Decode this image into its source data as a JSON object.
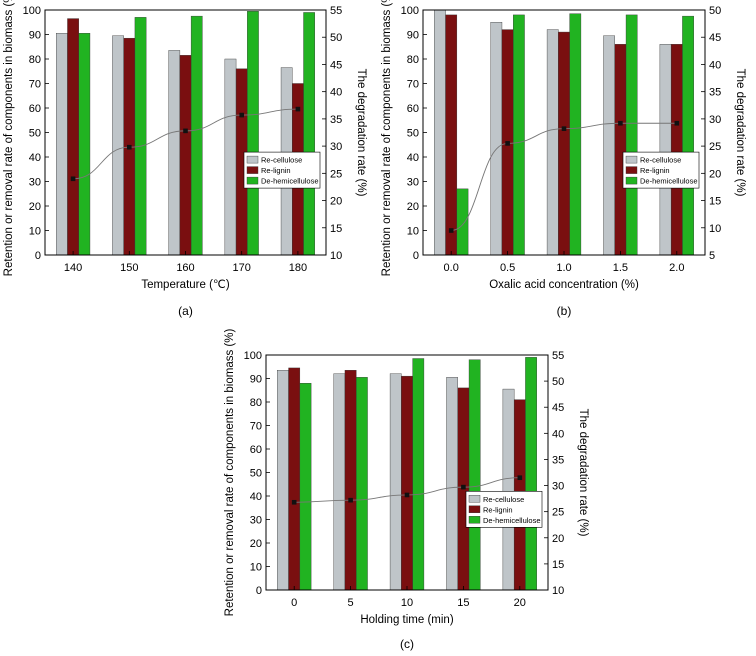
{
  "colors": {
    "Re-cellulose": "#bfc5c9",
    "Re-lignin": "#7a0f10",
    "De-hemicellulose": "#21b321",
    "line": "#777777",
    "marker": "#111111"
  },
  "chart_data": [
    {
      "type": "bar",
      "panel_label": "(a)",
      "categories": [
        "140",
        "150",
        "160",
        "170",
        "180"
      ],
      "xlabel": "Temperature (℃)",
      "ylabel": "Retention or removal rate of components in biomass (%)",
      "y2label": "The degradation rate (%)",
      "ylim": [
        0,
        100
      ],
      "yticks": [
        "0",
        "10",
        "20",
        "30",
        "40",
        "50",
        "60",
        "70",
        "80",
        "90",
        "100"
      ],
      "y2lim": [
        10,
        55
      ],
      "y2ticks": [
        "10",
        "15",
        "20",
        "25",
        "30",
        "35",
        "40",
        "45",
        "50",
        "55"
      ],
      "legend_position": "middle-right",
      "series": [
        {
          "name": "Re-cellulose",
          "values": [
            90.5,
            89.5,
            83.5,
            80,
            76.5
          ]
        },
        {
          "name": "Re-lignin",
          "values": [
            96.5,
            88.5,
            81.5,
            76,
            70
          ]
        },
        {
          "name": "De-hemicellulose",
          "values": [
            90.5,
            97,
            97.5,
            99.5,
            99
          ]
        }
      ],
      "line": {
        "name": "The degradation rate",
        "values": [
          24,
          29.8,
          32.8,
          35.7,
          36.8
        ]
      }
    },
    {
      "type": "bar",
      "panel_label": "(b)",
      "categories": [
        "0.0",
        "0.5",
        "1.0",
        "1.5",
        "2.0"
      ],
      "xlabel": "Oxalic acid concentration (%)",
      "ylabel": "Retention or removal rate of components in biomass (%)",
      "y2label": "The degradation rate (%)",
      "ylim": [
        0,
        100
      ],
      "yticks": [
        "0",
        "10",
        "20",
        "30",
        "40",
        "50",
        "60",
        "70",
        "80",
        "90",
        "100"
      ],
      "y2lim": [
        5,
        50
      ],
      "y2ticks": [
        "5",
        "10",
        "15",
        "20",
        "25",
        "30",
        "35",
        "40",
        "45",
        "50"
      ],
      "legend_position": "middle-right",
      "series": [
        {
          "name": "Re-cellulose",
          "values": [
            100,
            95,
            92,
            89.5,
            86
          ]
        },
        {
          "name": "Re-lignin",
          "values": [
            98,
            92,
            91,
            86,
            86
          ]
        },
        {
          "name": "De-hemicellulose",
          "values": [
            27,
            98,
            98.5,
            98,
            97.5
          ]
        }
      ],
      "line": {
        "name": "The degradation rate",
        "values": [
          9.5,
          25.5,
          28.2,
          29.2,
          29.2
        ]
      }
    },
    {
      "type": "bar",
      "panel_label": "(c)",
      "categories": [
        "0",
        "5",
        "10",
        "15",
        "20"
      ],
      "xlabel": "Holding time (min)",
      "ylabel": "Retention or removal rate of components in biomass (%)",
      "y2label": "The degradation rate (%)",
      "ylim": [
        0,
        100
      ],
      "yticks": [
        "0",
        "10",
        "20",
        "30",
        "40",
        "50",
        "60",
        "70",
        "80",
        "90",
        "100"
      ],
      "y2lim": [
        10,
        55
      ],
      "y2ticks": [
        "10",
        "15",
        "20",
        "25",
        "30",
        "35",
        "40",
        "45",
        "50",
        "55"
      ],
      "legend_position": "middle-right",
      "series": [
        {
          "name": "Re-cellulose",
          "values": [
            93.5,
            92,
            92,
            90.5,
            85.5
          ]
        },
        {
          "name": "Re-lignin",
          "values": [
            94.5,
            93.5,
            91,
            86,
            81
          ]
        },
        {
          "name": "De-hemicellulose",
          "values": [
            88,
            90.5,
            98.5,
            98,
            99
          ]
        }
      ],
      "line": {
        "name": "The degradation rate",
        "values": [
          26.8,
          27.2,
          28.2,
          29.7,
          31.5
        ]
      }
    }
  ]
}
